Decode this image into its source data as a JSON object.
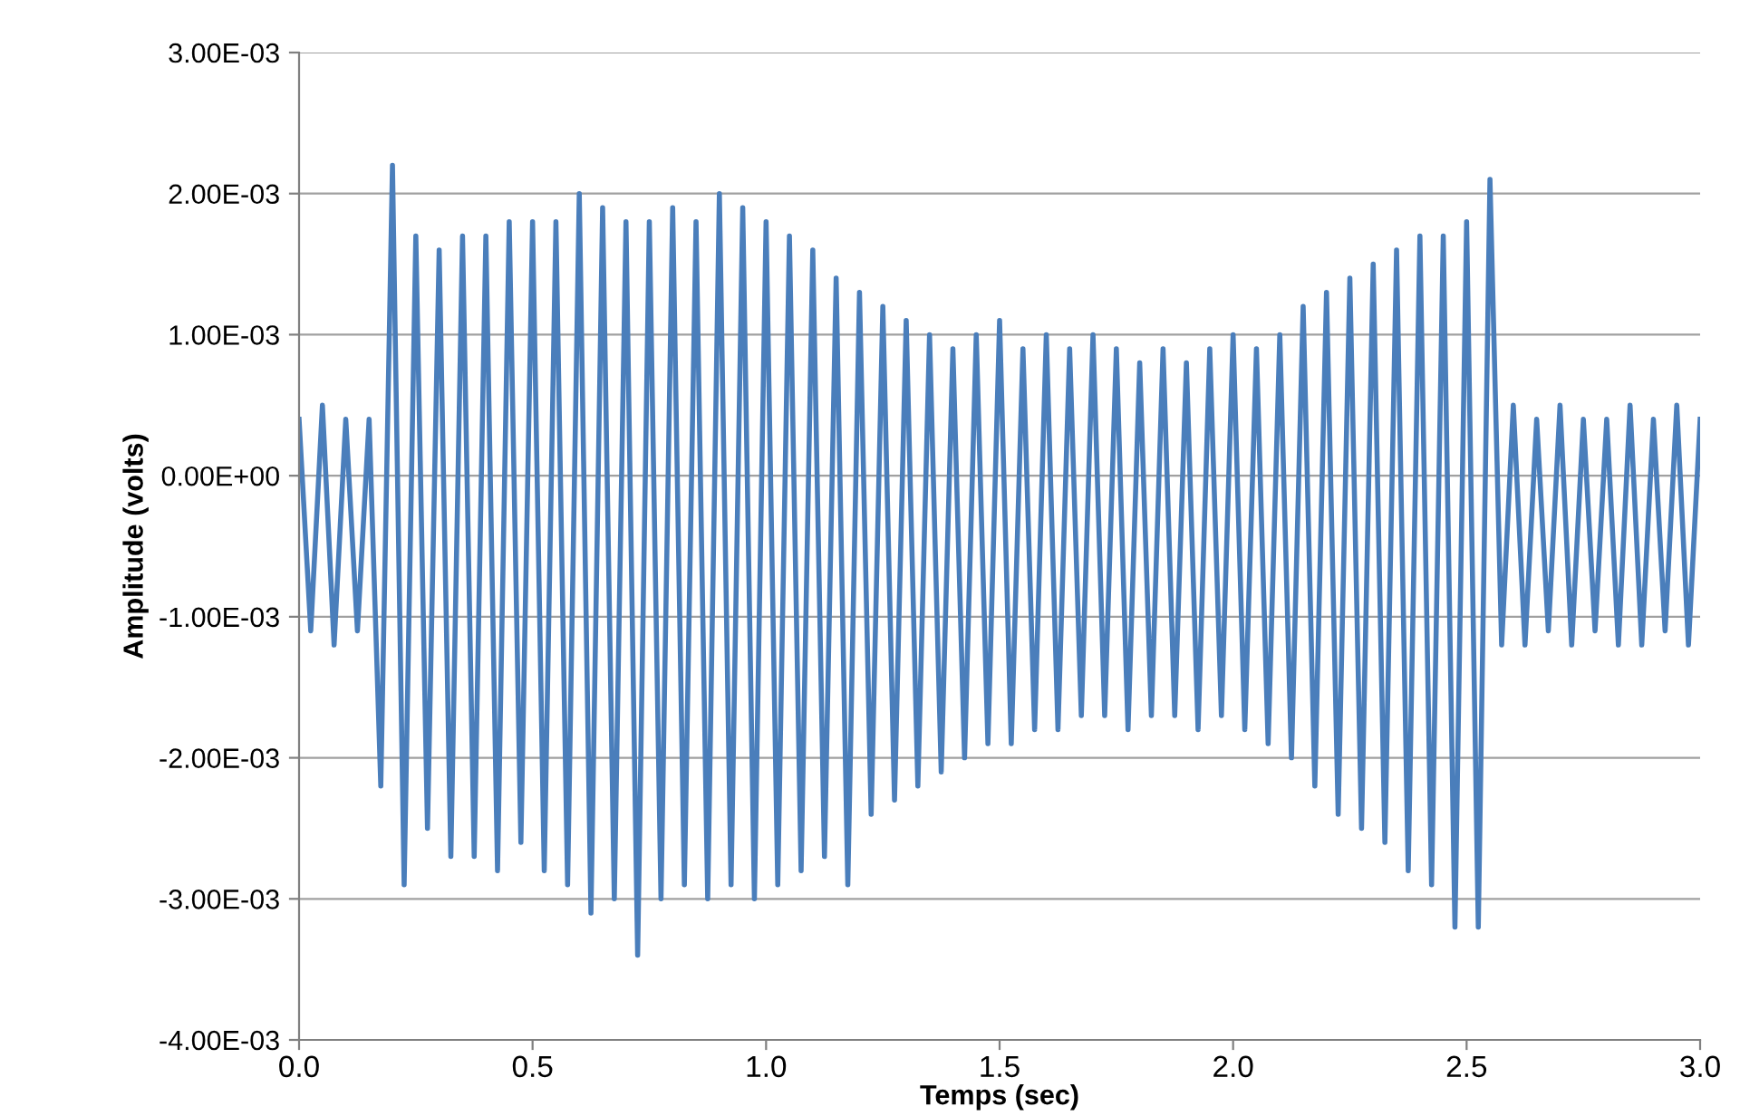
{
  "chart_data": {
    "type": "line",
    "xlabel": "Temps (sec)",
    "ylabel": "Amplitude (volts)",
    "grid": "y",
    "marker": "none",
    "line_style": "solid",
    "xlim": [
      0,
      3
    ],
    "ylim": [
      -0.004,
      0.003
    ],
    "xticks": [
      {
        "value": 0,
        "label": "0.0"
      },
      {
        "value": 0.5,
        "label": "0.5"
      },
      {
        "value": 1,
        "label": "1.0"
      },
      {
        "value": 1.5,
        "label": "1.5"
      },
      {
        "value": 2,
        "label": "2.0"
      },
      {
        "value": 2.5,
        "label": "2.5"
      },
      {
        "value": 3,
        "label": "3.0"
      }
    ],
    "yticks": [
      {
        "value": 0.003,
        "label": "3.00E-03"
      },
      {
        "value": 0.002,
        "label": "2.00E-03"
      },
      {
        "value": 0.001,
        "label": "1.00E-03"
      },
      {
        "value": 0,
        "label": "0.00E+00"
      },
      {
        "value": -0.001,
        "label": "-1.00E-03"
      },
      {
        "value": -0.002,
        "label": "-2.00E-03"
      },
      {
        "value": -0.003,
        "label": "-3.00E-03"
      },
      {
        "value": -0.004,
        "label": "-4.00E-03"
      }
    ],
    "x": [
      0,
      0.025,
      0.05,
      0.075,
      0.1,
      0.125,
      0.15,
      0.175,
      0.2,
      0.225,
      0.25,
      0.275,
      0.3,
      0.325,
      0.35,
      0.375,
      0.4,
      0.425,
      0.45,
      0.475,
      0.5,
      0.525,
      0.55,
      0.575,
      0.6,
      0.625,
      0.65,
      0.675,
      0.7,
      0.725,
      0.75,
      0.775,
      0.8,
      0.825,
      0.85,
      0.875,
      0.9,
      0.925,
      0.95,
      0.975,
      1,
      1.025,
      1.05,
      1.075,
      1.1,
      1.125,
      1.15,
      1.175,
      1.2,
      1.225,
      1.25,
      1.275,
      1.3,
      1.325,
      1.35,
      1.375,
      1.4,
      1.425,
      1.45,
      1.475,
      1.5,
      1.525,
      1.55,
      1.575,
      1.6,
      1.625,
      1.65,
      1.675,
      1.7,
      1.725,
      1.75,
      1.775,
      1.8,
      1.825,
      1.85,
      1.875,
      1.9,
      1.925,
      1.95,
      1.975,
      2,
      2.025,
      2.05,
      2.075,
      2.1,
      2.125,
      2.15,
      2.175,
      2.2,
      2.225,
      2.25,
      2.275,
      2.3,
      2.325,
      2.35,
      2.375,
      2.4,
      2.425,
      2.45,
      2.475,
      2.5,
      2.525,
      2.55,
      2.575,
      2.6,
      2.625,
      2.65,
      2.675,
      2.7,
      2.725,
      2.75,
      2.775,
      2.8,
      2.825,
      2.85,
      2.875,
      2.9,
      2.925,
      2.95,
      2.975,
      3
    ],
    "series": [
      {
        "color": "#4a7ebb",
        "values": [
          0.0004,
          -0.0011,
          0.0005,
          -0.0012,
          0.0004,
          -0.0011,
          0.0004,
          -0.0022,
          0.0022,
          -0.0029,
          0.0017,
          -0.0025,
          0.0016,
          -0.0027,
          0.0017,
          -0.0027,
          0.0017,
          -0.0028,
          0.0018,
          -0.0026,
          0.0018,
          -0.0028,
          0.0018,
          -0.0029,
          0.002,
          -0.0031,
          0.0019,
          -0.003,
          0.0018,
          -0.0034,
          0.0018,
          -0.003,
          0.0019,
          -0.0029,
          0.0018,
          -0.003,
          0.002,
          -0.0029,
          0.0019,
          -0.003,
          0.0018,
          -0.0029,
          0.0017,
          -0.0028,
          0.0016,
          -0.0027,
          0.0014,
          -0.0029,
          0.0013,
          -0.0024,
          0.0012,
          -0.0023,
          0.0011,
          -0.0022,
          0.001,
          -0.0021,
          0.0009,
          -0.002,
          0.001,
          -0.0019,
          0.0011,
          -0.0019,
          0.0009,
          -0.0018,
          0.001,
          -0.0018,
          0.0009,
          -0.0017,
          0.001,
          -0.0017,
          0.0009,
          -0.0018,
          0.0008,
          -0.0017,
          0.0009,
          -0.0017,
          0.0008,
          -0.0018,
          0.0009,
          -0.0017,
          0.001,
          -0.0018,
          0.0009,
          -0.0019,
          0.001,
          -0.002,
          0.0012,
          -0.0022,
          0.0013,
          -0.0024,
          0.0014,
          -0.0025,
          0.0015,
          -0.0026,
          0.0016,
          -0.0028,
          0.0017,
          -0.0029,
          0.0017,
          -0.0032,
          0.0018,
          -0.0032,
          0.0021,
          -0.0012,
          0.0005,
          -0.0012,
          0.0004,
          -0.0011,
          0.0005,
          -0.0012,
          0.0004,
          -0.0011,
          0.0004,
          -0.0012,
          0.0005,
          -0.0012,
          0.0004,
          -0.0011,
          0.0005,
          -0.0012,
          0.0004
        ]
      }
    ]
  }
}
